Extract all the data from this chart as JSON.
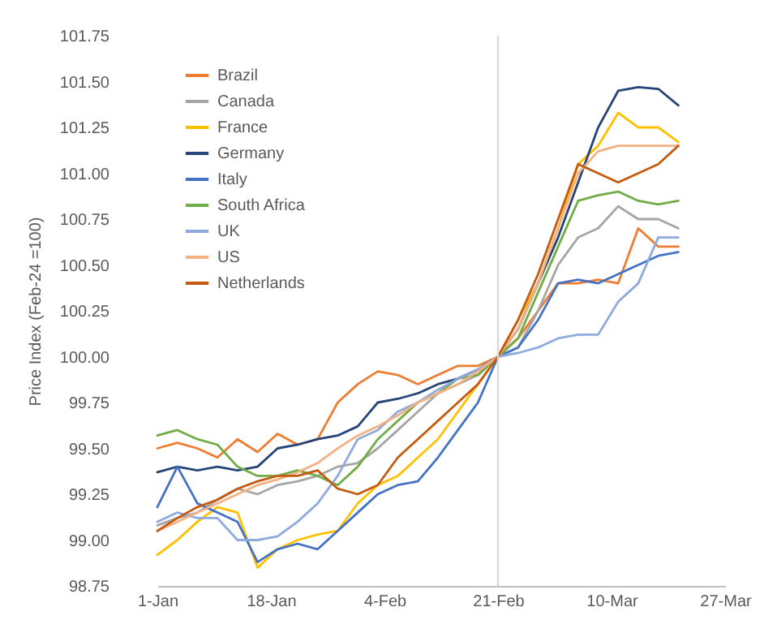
{
  "chart_data": {
    "type": "line",
    "ylabel": "Price Index (Feb-24 =100)",
    "x": [
      "--01-01",
      "--01-04",
      "--01-07",
      "--01-10",
      "--01-13",
      "--01-16",
      "--01-19",
      "--01-22",
      "--01-25",
      "--01-28",
      "--01-31",
      "--02-03",
      "--02-06",
      "--02-09",
      "--02-12",
      "--02-15",
      "--02-18",
      "--02-21",
      "--02-24",
      "--02-27",
      "--03-02",
      "--03-05",
      "--03-08",
      "--03-11",
      "--03-14",
      "--03-17",
      "--03-20"
    ],
    "series": [
      {
        "name": "Brazil",
        "color": "#ed7d31",
        "values": [
          99.5,
          99.53,
          99.5,
          99.45,
          99.55,
          99.48,
          99.58,
          99.52,
          99.55,
          99.75,
          99.85,
          99.92,
          99.9,
          99.85,
          99.9,
          99.95,
          99.95,
          100.0,
          100.1,
          100.25,
          100.4,
          100.4,
          100.42,
          100.4,
          100.7,
          100.6,
          100.6
        ]
      },
      {
        "name": "Canada",
        "color": "#a5a5a5",
        "values": [
          99.08,
          99.12,
          99.15,
          99.22,
          99.28,
          99.25,
          99.3,
          99.32,
          99.35,
          99.4,
          99.42,
          99.5,
          99.6,
          99.7,
          99.8,
          99.85,
          99.9,
          100.0,
          100.05,
          100.25,
          100.5,
          100.65,
          100.7,
          100.82,
          100.75,
          100.75,
          100.7
        ]
      },
      {
        "name": "France",
        "color": "#ffc000",
        "values": [
          98.92,
          99.0,
          99.1,
          99.18,
          99.15,
          98.85,
          98.95,
          99.0,
          99.03,
          99.05,
          99.2,
          99.3,
          99.35,
          99.45,
          99.55,
          99.7,
          99.85,
          100.0,
          100.2,
          100.4,
          100.7,
          101.05,
          101.15,
          101.33,
          101.25,
          101.25,
          101.17
        ]
      },
      {
        "name": "Germany",
        "color": "#264478",
        "values": [
          99.37,
          99.4,
          99.38,
          99.4,
          99.38,
          99.4,
          99.5,
          99.52,
          99.55,
          99.57,
          99.62,
          99.75,
          99.77,
          99.8,
          99.85,
          99.88,
          99.93,
          100.0,
          100.15,
          100.4,
          100.65,
          100.95,
          101.25,
          101.45,
          101.47,
          101.46,
          101.37
        ]
      },
      {
        "name": "Italy",
        "color": "#4472c4",
        "values": [
          99.18,
          99.4,
          99.2,
          99.15,
          99.1,
          98.88,
          98.95,
          98.98,
          98.95,
          99.05,
          99.15,
          99.25,
          99.3,
          99.32,
          99.45,
          99.6,
          99.75,
          100.0,
          100.05,
          100.2,
          100.4,
          100.42,
          100.4,
          100.45,
          100.5,
          100.55,
          100.57
        ]
      },
      {
        "name": "South Africa",
        "color": "#70ad47",
        "values": [
          99.57,
          99.6,
          99.55,
          99.52,
          99.4,
          99.35,
          99.35,
          99.38,
          99.35,
          99.3,
          99.4,
          99.55,
          99.65,
          99.75,
          99.8,
          99.88,
          99.9,
          100.0,
          100.1,
          100.35,
          100.6,
          100.85,
          100.88,
          100.9,
          100.85,
          100.83,
          100.85
        ]
      },
      {
        "name": "UK",
        "color": "#8faadc",
        "values": [
          99.1,
          99.15,
          99.12,
          99.12,
          99.0,
          99.0,
          99.02,
          99.1,
          99.2,
          99.35,
          99.55,
          99.6,
          99.7,
          99.75,
          99.82,
          99.88,
          99.93,
          100.0,
          100.02,
          100.05,
          100.1,
          100.12,
          100.12,
          100.3,
          100.4,
          100.65,
          100.65
        ]
      },
      {
        "name": "US",
        "color": "#f4b183",
        "values": [
          99.05,
          99.1,
          99.15,
          99.2,
          99.25,
          99.3,
          99.33,
          99.37,
          99.42,
          99.5,
          99.57,
          99.62,
          99.68,
          99.75,
          99.8,
          99.85,
          99.92,
          100.0,
          100.15,
          100.4,
          100.7,
          101.0,
          101.12,
          101.15,
          101.15,
          101.15,
          101.15
        ]
      },
      {
        "name": "Netherlands",
        "color": "#c55a11",
        "values": [
          99.05,
          99.12,
          99.18,
          99.22,
          99.28,
          99.32,
          99.35,
          99.35,
          99.38,
          99.28,
          99.25,
          99.3,
          99.45,
          99.55,
          99.65,
          99.75,
          99.85,
          100.0,
          100.2,
          100.45,
          100.75,
          101.05,
          101.0,
          100.95,
          101.0,
          101.05,
          101.15
        ]
      }
    ],
    "xlim": [
      "--01-01",
      "--03-27"
    ],
    "xticks": [
      {
        "value": "--01-01",
        "label": "1-Jan"
      },
      {
        "value": "--01-18",
        "label": "18-Jan"
      },
      {
        "value": "--02-04",
        "label": "4-Feb"
      },
      {
        "value": "--02-21",
        "label": "21-Feb"
      },
      {
        "value": "--03-10",
        "label": "10-Mar"
      },
      {
        "value": "--03-27",
        "label": "27-Mar"
      }
    ],
    "ylim": [
      98.75,
      101.75
    ],
    "yticks": [
      {
        "value": 98.75,
        "label": "98.75"
      },
      {
        "value": 99,
        "label": "99.00"
      },
      {
        "value": 99.25,
        "label": "99.25"
      },
      {
        "value": 99.5,
        "label": "99.50"
      },
      {
        "value": 99.75,
        "label": "99.75"
      },
      {
        "value": 100,
        "label": "100.00"
      },
      {
        "value": 100.25,
        "label": "100.25"
      },
      {
        "value": 100.5,
        "label": "100.50"
      },
      {
        "value": 100.75,
        "label": "100.75"
      },
      {
        "value": 101,
        "label": "101.00"
      },
      {
        "value": 101.25,
        "label": "101.25"
      },
      {
        "value": 101.5,
        "label": "101.50"
      },
      {
        "value": 101.75,
        "label": "101.75"
      }
    ],
    "ref_lines": [
      {
        "axis": "x",
        "value": "--02-21",
        "color": "#d9d9d9"
      }
    ],
    "grid": false,
    "legend": "top left",
    "line_style": "solid"
  }
}
